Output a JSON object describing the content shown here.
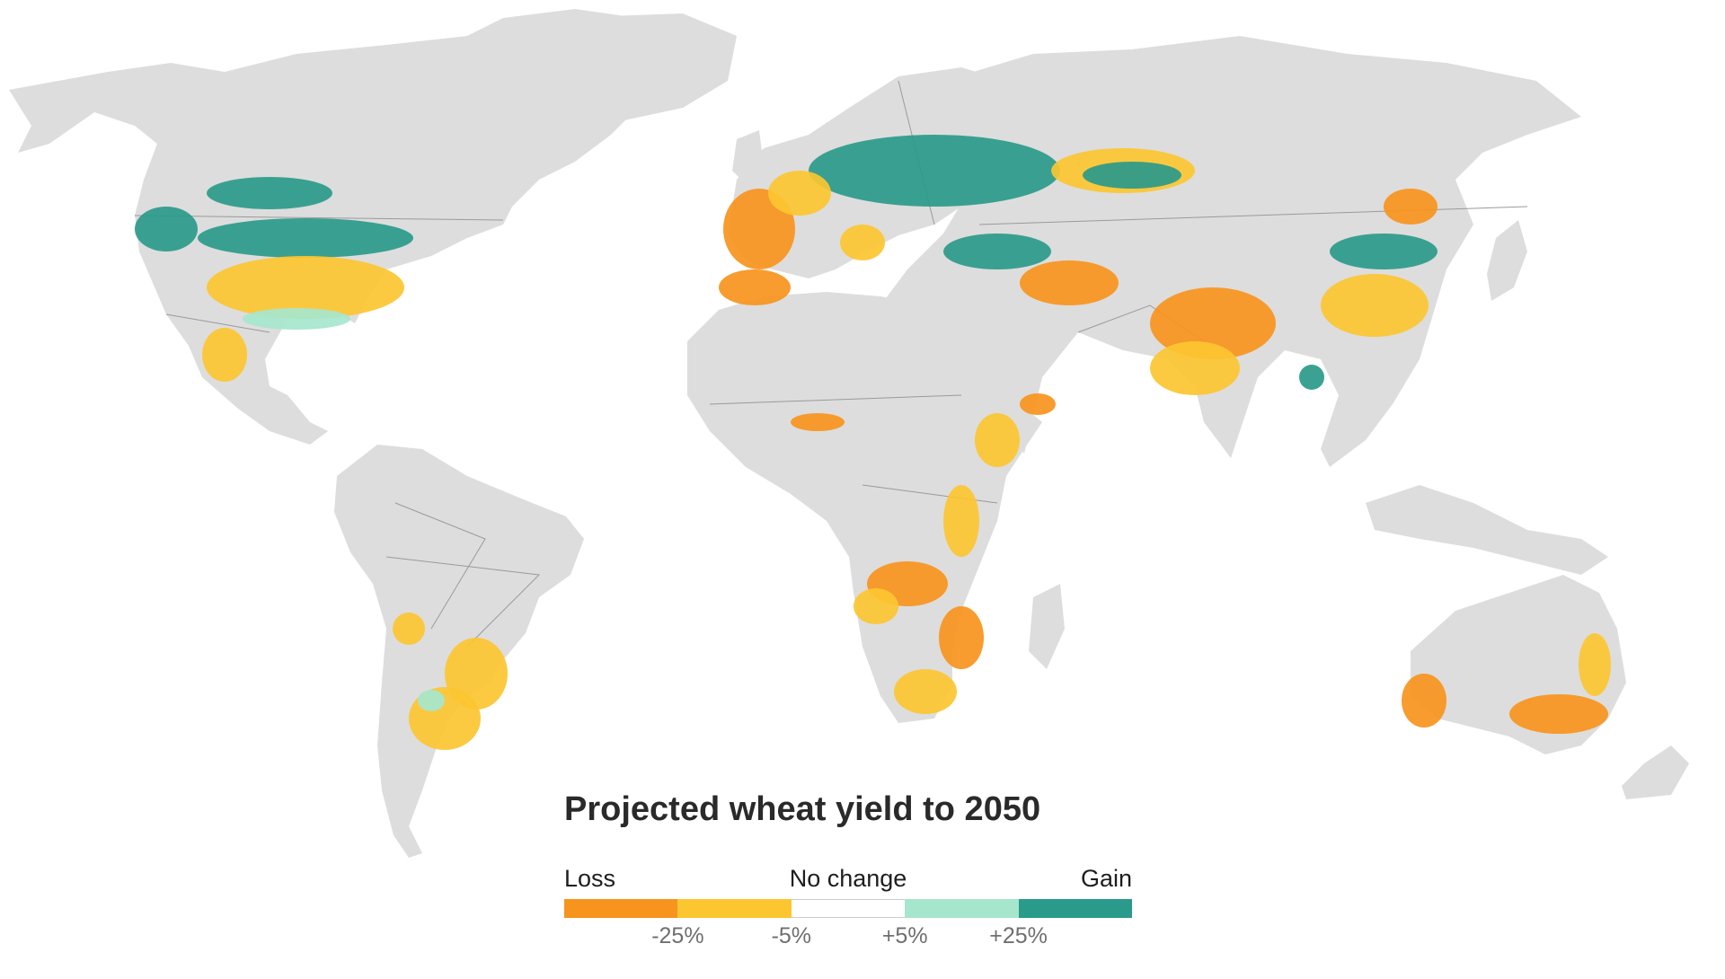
{
  "map": {
    "title": "Projected wheat yield to 2050",
    "land_color": "#dddddd",
    "border_color": "#9a9a9a"
  },
  "legend": {
    "loss_label": "Loss",
    "no_change_label": "No change",
    "gain_label": "Gain",
    "bins": [
      {
        "name": "large-loss",
        "color": "#f7941d"
      },
      {
        "name": "loss",
        "color": "#fcc631"
      },
      {
        "name": "no-change",
        "color": "#ffffff"
      },
      {
        "name": "gain",
        "color": "#a6e6cd"
      },
      {
        "name": "large-gain",
        "color": "#2a9a8a"
      }
    ],
    "ticks": [
      "-25%",
      "-5%",
      "+5%",
      "+25%"
    ]
  }
}
